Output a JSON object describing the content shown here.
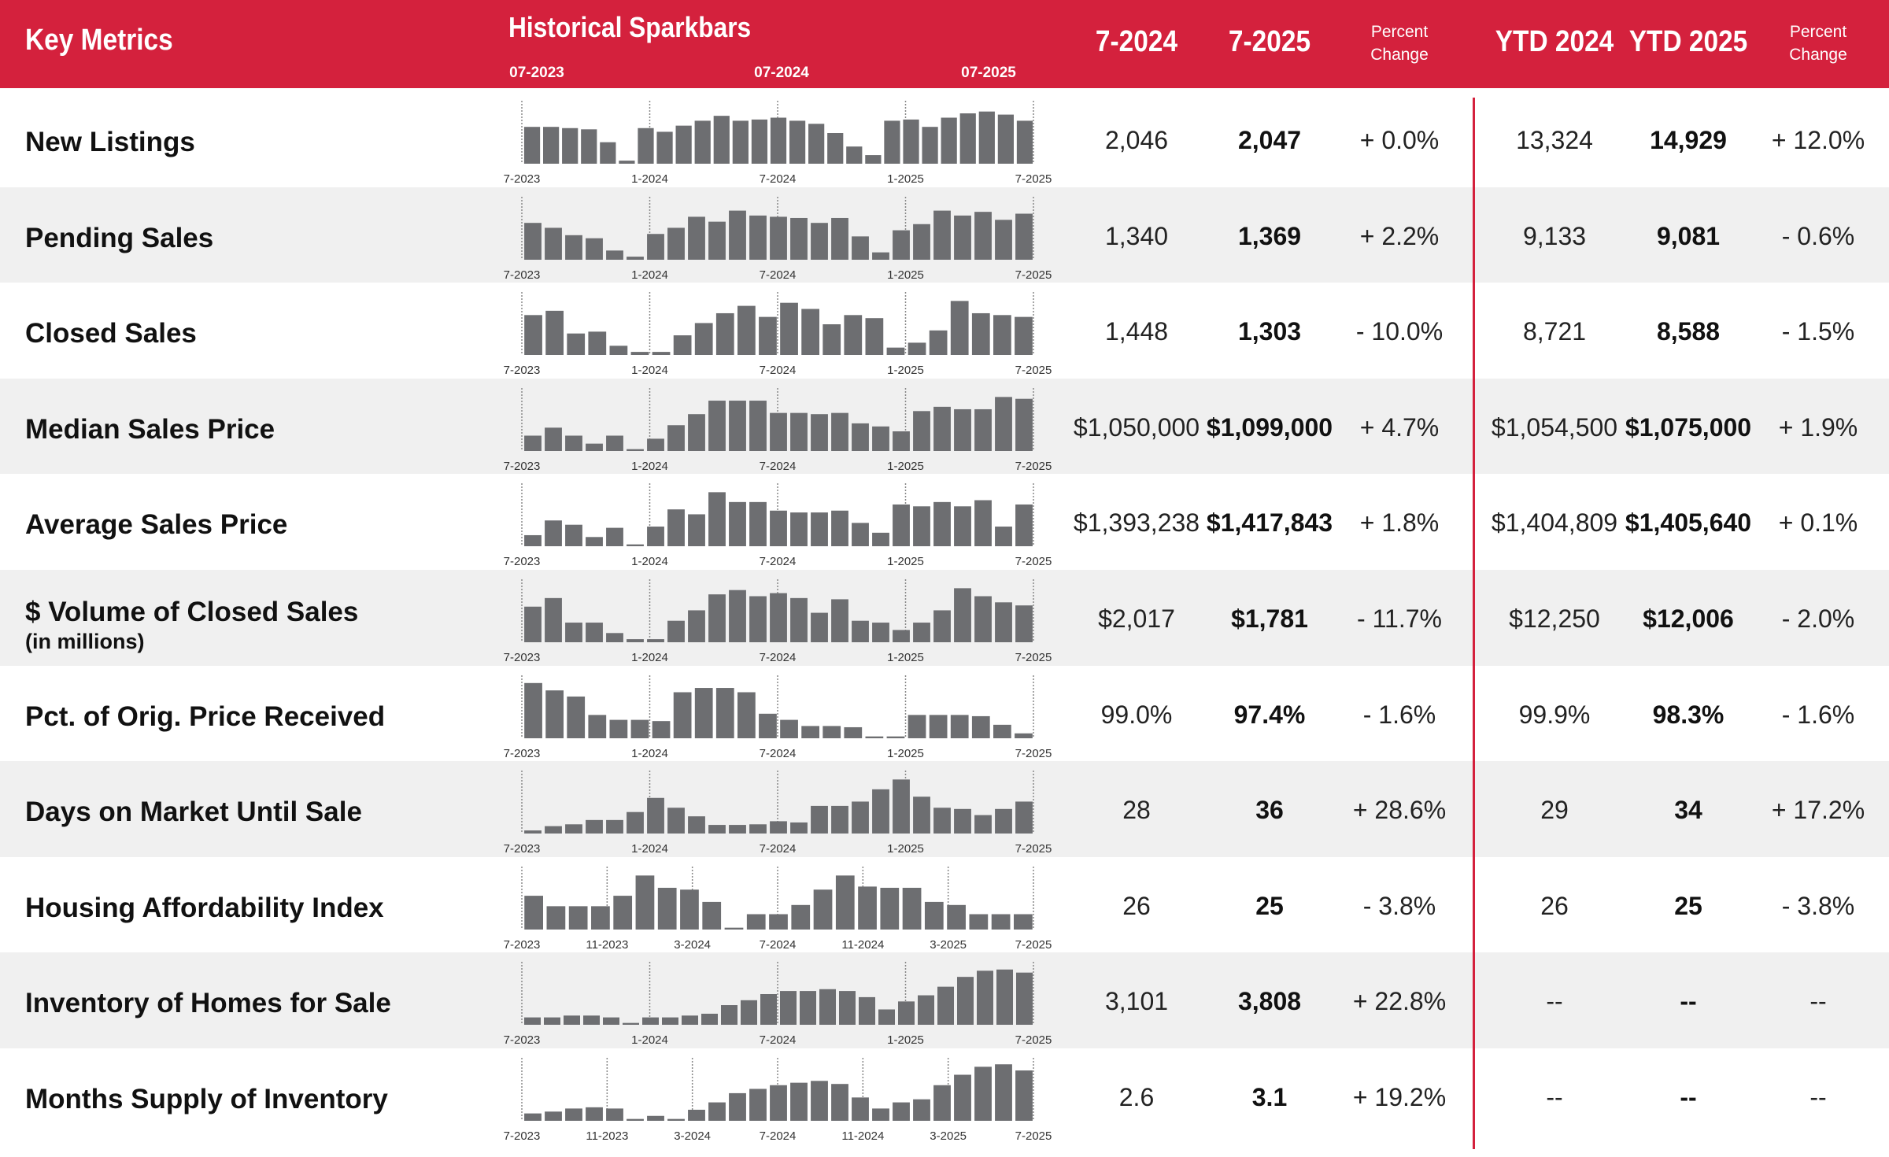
{
  "header": {
    "title": "Key Metrics",
    "sparkbars_title": "Historical Sparkbars",
    "spark_ticks": [
      "07-2023",
      "07-2024",
      "07-2025"
    ],
    "col_month_prev": "7-2024",
    "col_month_curr": "7-2025",
    "col_pct_1": "Percent\nChange",
    "col_ytd_prev": "YTD 2024",
    "col_ytd_curr": "YTD 2025",
    "col_pct_2": "Percent\nChange"
  },
  "colors": {
    "accent": "#d4213d",
    "bar": "#6d6e71",
    "shade": "#f0f0f0"
  },
  "chart_data": [
    {
      "type": "bar",
      "label": "New Listings",
      "sublabel": "",
      "axis_labels": [
        "7-2023",
        "1-2024",
        "7-2024",
        "1-2025",
        "7-2025"
      ],
      "values": [
        60,
        60,
        58,
        56,
        35,
        5,
        58,
        52,
        62,
        70,
        78,
        70,
        72,
        75,
        70,
        65,
        50,
        28,
        14,
        70,
        72,
        60,
        75,
        82,
        85,
        80,
        70
      ],
      "m_prev": "2,046",
      "m_curr": "2,047",
      "m_pct": "+ 0.0%",
      "y_prev": "13,324",
      "y_curr": "14,929",
      "y_pct": "+ 12.0%"
    },
    {
      "type": "bar",
      "label": "Pending Sales",
      "sublabel": "",
      "axis_labels": [
        "7-2023",
        "1-2024",
        "7-2024",
        "1-2025",
        "7-2025"
      ],
      "values": [
        60,
        52,
        40,
        35,
        15,
        5,
        42,
        52,
        70,
        62,
        80,
        72,
        70,
        68,
        60,
        68,
        38,
        12,
        48,
        58,
        80,
        72,
        78,
        65,
        75
      ],
      "m_prev": "1,340",
      "m_curr": "1,369",
      "m_pct": "+ 2.2%",
      "y_prev": "9,133",
      "y_curr": "9,081",
      "y_pct": "- 0.6%"
    },
    {
      "type": "bar",
      "label": "Closed Sales",
      "sublabel": "",
      "axis_labels": [
        "7-2023",
        "1-2024",
        "7-2024",
        "1-2025",
        "7-2025"
      ],
      "values": [
        65,
        72,
        35,
        38,
        15,
        5,
        5,
        32,
        52,
        68,
        80,
        62,
        85,
        75,
        50,
        65,
        60,
        12,
        20,
        40,
        88,
        68,
        65,
        62
      ],
      "m_prev": "1,448",
      "m_curr": "1,303",
      "m_pct": "- 10.0%",
      "y_prev": "8,721",
      "y_curr": "8,588",
      "y_pct": "- 1.5%"
    },
    {
      "type": "bar",
      "label": "Median Sales Price",
      "sublabel": "",
      "axis_labels": [
        "7-2023",
        "1-2024",
        "7-2024",
        "1-2025",
        "7-2025"
      ],
      "values": [
        25,
        38,
        25,
        12,
        25,
        3,
        20,
        42,
        60,
        82,
        82,
        82,
        62,
        62,
        60,
        62,
        45,
        40,
        32,
        65,
        72,
        68,
        68,
        88,
        85
      ],
      "m_prev": "$1,050,000",
      "m_curr": "$1,099,000",
      "m_pct": "+ 4.7%",
      "y_prev": "$1,054,500",
      "y_curr": "$1,075,000",
      "y_pct": "+ 1.9%"
    },
    {
      "type": "bar",
      "label": "Average Sales Price",
      "sublabel": "",
      "axis_labels": [
        "7-2023",
        "1-2024",
        "7-2024",
        "1-2025",
        "7-2025"
      ],
      "values": [
        18,
        42,
        35,
        15,
        30,
        3,
        32,
        60,
        52,
        88,
        72,
        72,
        58,
        55,
        55,
        58,
        38,
        22,
        68,
        65,
        72,
        65,
        75,
        32,
        68
      ],
      "m_prev": "$1,393,238",
      "m_curr": "$1,417,843",
      "m_pct": "+ 1.8%",
      "y_prev": "$1,404,809",
      "y_curr": "$1,405,640",
      "y_pct": "+ 0.1%"
    },
    {
      "type": "bar",
      "label": "$ Volume of Closed Sales",
      "sublabel": "(in millions)",
      "axis_labels": [
        "7-2023",
        "1-2024",
        "7-2024",
        "1-2025",
        "7-2025"
      ],
      "values": [
        58,
        72,
        32,
        32,
        15,
        5,
        5,
        35,
        52,
        78,
        85,
        75,
        80,
        72,
        48,
        70,
        35,
        32,
        20,
        32,
        52,
        88,
        75,
        65,
        60
      ],
      "m_prev": "$2,017",
      "m_curr": "$1,781",
      "m_pct": "- 11.7%",
      "y_prev": "$12,250",
      "y_curr": "$12,006",
      "y_pct": "- 2.0%"
    },
    {
      "type": "bar",
      "label": "Pct. of Orig. Price Received",
      "sublabel": "",
      "axis_labels": [
        "7-2023",
        "1-2024",
        "7-2024",
        "1-2025",
        "7-2025"
      ],
      "values": [
        90,
        78,
        68,
        38,
        30,
        30,
        28,
        75,
        82,
        82,
        75,
        40,
        30,
        20,
        20,
        18,
        3,
        3,
        38,
        38,
        38,
        36,
        22,
        8
      ],
      "m_prev": "99.0%",
      "m_curr": "97.4%",
      "m_pct": "- 1.6%",
      "y_prev": "99.9%",
      "y_curr": "98.3%",
      "y_pct": "- 1.6%"
    },
    {
      "type": "bar",
      "label": "Days on Market Until Sale",
      "sublabel": "",
      "axis_labels": [
        "7-2023",
        "1-2024",
        "7-2024",
        "1-2025",
        "7-2025"
      ],
      "values": [
        5,
        12,
        15,
        22,
        22,
        35,
        58,
        42,
        28,
        14,
        14,
        15,
        20,
        18,
        45,
        45,
        52,
        72,
        88,
        60,
        42,
        40,
        30,
        40,
        52
      ],
      "m_prev": "28",
      "m_curr": "36",
      "m_pct": "+ 28.6%",
      "y_prev": "29",
      "y_curr": "34",
      "y_pct": "+ 17.2%"
    },
    {
      "type": "bar",
      "label": "Housing Affordability Index",
      "sublabel": "",
      "axis_labels": [
        "7-2023",
        "11-2023",
        "3-2024",
        "7-2024",
        "11-2024",
        "3-2025",
        "7-2025"
      ],
      "values": [
        55,
        38,
        38,
        38,
        55,
        88,
        68,
        65,
        45,
        3,
        25,
        25,
        40,
        65,
        88,
        70,
        68,
        68,
        45,
        40,
        25,
        25,
        25
      ],
      "m_prev": "26",
      "m_curr": "25",
      "m_pct": "- 3.8%",
      "y_prev": "26",
      "y_curr": "25",
      "y_pct": "- 3.8%"
    },
    {
      "type": "bar",
      "label": "Inventory of Homes for Sale",
      "sublabel": "",
      "axis_labels": [
        "7-2023",
        "1-2024",
        "7-2024",
        "1-2025",
        "7-2025"
      ],
      "values": [
        12,
        12,
        15,
        15,
        12,
        3,
        12,
        12,
        15,
        18,
        32,
        40,
        50,
        55,
        55,
        58,
        55,
        45,
        25,
        38,
        48,
        62,
        78,
        88,
        90,
        85
      ],
      "m_prev": "3,101",
      "m_curr": "3,808",
      "m_pct": "+ 22.8%",
      "y_prev": "--",
      "y_curr": "--",
      "y_pct": "--"
    },
    {
      "type": "bar",
      "label": "Months Supply of Inventory",
      "sublabel": "",
      "axis_labels": [
        "7-2023",
        "11-2023",
        "3-2024",
        "7-2024",
        "11-2024",
        "3-2025",
        "7-2025"
      ],
      "values": [
        12,
        15,
        20,
        22,
        20,
        3,
        8,
        3,
        18,
        30,
        45,
        52,
        58,
        62,
        65,
        60,
        38,
        20,
        30,
        35,
        58,
        75,
        88,
        92,
        82
      ],
      "m_prev": "2.6",
      "m_curr": "3.1",
      "m_pct": "+ 19.2%",
      "y_prev": "--",
      "y_curr": "--",
      "y_pct": "--"
    }
  ]
}
